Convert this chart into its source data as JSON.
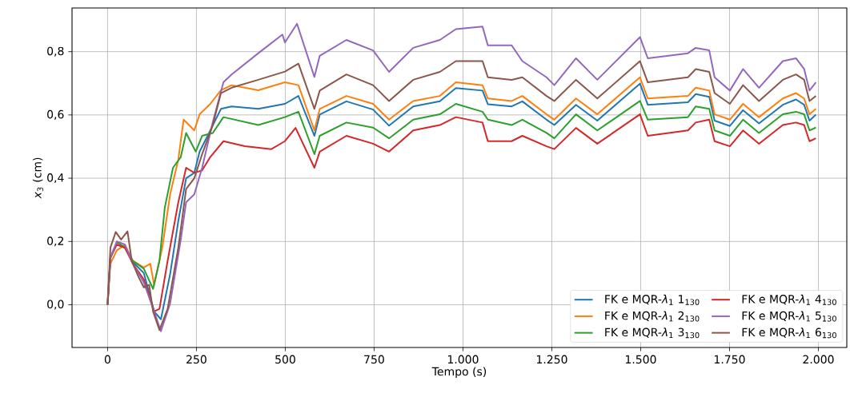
{
  "chart_data": {
    "type": "line",
    "xlabel": "Tempo (s)",
    "ylabel": "*x*$_{3}$ (cm)",
    "xlim": [
      -100,
      2080
    ],
    "ylim": [
      -0.135,
      0.938
    ],
    "xticks": [
      0,
      250,
      500,
      750,
      {
        "value": 1000,
        "label": "1.000"
      },
      {
        "value": 1250,
        "label": "1.250"
      },
      {
        "value": 1500,
        "label": "1.500"
      },
      {
        "value": 1750,
        "label": "1.750"
      },
      {
        "value": 2000,
        "label": "2.000"
      }
    ],
    "yticks": [
      {
        "value": 0,
        "label": "0,0"
      },
      {
        "value": 0.2,
        "label": "0,2"
      },
      {
        "value": 0.4,
        "label": "0,4"
      },
      {
        "value": 0.6,
        "label": "0,6"
      },
      {
        "value": 0.8,
        "label": "0,8"
      }
    ],
    "grid": true,
    "legend": "bottom right",
    "series": [
      {
        "name": "FK e MQR-*λ*$_{1}$ 1$_{130}$",
        "color": "#1f77b4",
        "x": [
          49,
          71,
          102,
          131,
          150,
          176,
          199,
          221,
          244,
          259,
          289,
          319,
          349,
          424,
          499,
          537,
          582,
          597,
          672,
          747,
          792,
          860,
          935,
          980,
          1055,
          1070,
          1137,
          1167,
          1235,
          1257,
          1318,
          1378,
          1498,
          1520,
          1633,
          1655,
          1693,
          1708,
          1751,
          1788,
          1833,
          1900,
          1937,
          1960,
          1975,
          1993
        ],
        "values": [
          0.18,
          0.135,
          0.1,
          -0.021,
          -0.046,
          0.097,
          0.265,
          0.4,
          0.417,
          0.484,
          0.551,
          0.619,
          0.627,
          0.619,
          0.635,
          0.66,
          0.534,
          0.601,
          0.643,
          0.617,
          0.566,
          0.627,
          0.643,
          0.685,
          0.677,
          0.634,
          0.627,
          0.643,
          0.585,
          0.568,
          0.632,
          0.582,
          0.699,
          0.632,
          0.64,
          0.666,
          0.657,
          0.582,
          0.565,
          0.615,
          0.573,
          0.632,
          0.649,
          0.632,
          0.582,
          0.601
        ]
      },
      {
        "name": "FK e MQR-*λ*$_{1}$ 2$_{130}$",
        "color": "#ff7f0e",
        "x": [
          0,
          8,
          26,
          49,
          71,
          102,
          120,
          131,
          154,
          176,
          199,
          214,
          244,
          259,
          289,
          319,
          349,
          424,
          499,
          537,
          582,
          597,
          672,
          747,
          792,
          860,
          935,
          980,
          1055,
          1070,
          1137,
          1167,
          1235,
          1257,
          1318,
          1378,
          1498,
          1520,
          1633,
          1655,
          1693,
          1708,
          1751,
          1788,
          1833,
          1900,
          1937,
          1960,
          1975,
          1993
        ],
        "values": [
          0,
          0.13,
          0.172,
          0.189,
          0.139,
          0.118,
          0.13,
          0.063,
          0.181,
          0.349,
          0.459,
          0.585,
          0.551,
          0.602,
          0.635,
          0.678,
          0.694,
          0.678,
          0.703,
          0.694,
          0.551,
          0.619,
          0.66,
          0.635,
          0.585,
          0.644,
          0.66,
          0.703,
          0.694,
          0.652,
          0.644,
          0.66,
          0.602,
          0.585,
          0.652,
          0.602,
          0.719,
          0.652,
          0.66,
          0.686,
          0.677,
          0.602,
          0.585,
          0.635,
          0.593,
          0.652,
          0.669,
          0.652,
          0.602,
          0.619
        ]
      },
      {
        "name": "FK e MQR-*λ*$_{1}$ 3$_{130}$",
        "color": "#2ca02c",
        "x": [
          0,
          8,
          26,
          49,
          71,
          102,
          128,
          146,
          161,
          184,
          206,
          221,
          248,
          266,
          296,
          326,
          424,
          499,
          537,
          582,
          597,
          672,
          747,
          792,
          860,
          935,
          980,
          1055,
          1070,
          1137,
          1167,
          1235,
          1257,
          1318,
          1378,
          1498,
          1520,
          1633,
          1655,
          1693,
          1708,
          1751,
          1788,
          1833,
          1900,
          1937,
          1960,
          1975,
          1993
        ],
        "values": [
          0,
          0.147,
          0.198,
          0.181,
          0.139,
          0.114,
          0.05,
          0.139,
          0.307,
          0.433,
          0.467,
          0.543,
          0.484,
          0.534,
          0.543,
          0.593,
          0.568,
          0.593,
          0.61,
          0.476,
          0.534,
          0.576,
          0.56,
          0.526,
          0.585,
          0.602,
          0.635,
          0.61,
          0.585,
          0.568,
          0.585,
          0.543,
          0.526,
          0.602,
          0.551,
          0.644,
          0.585,
          0.593,
          0.627,
          0.619,
          0.551,
          0.534,
          0.585,
          0.543,
          0.602,
          0.61,
          0.602,
          0.551,
          0.56
        ]
      },
      {
        "name": "FK e MQR-*λ*$_{1}$ 4$_{130}$",
        "color": "#d62728",
        "x": [
          0,
          8,
          26,
          49,
          71,
          102,
          131,
          146,
          169,
          199,
          221,
          244,
          266,
          289,
          326,
          386,
          461,
          499,
          529,
          582,
          597,
          672,
          747,
          792,
          860,
          935,
          980,
          1055,
          1070,
          1137,
          1167,
          1235,
          1257,
          1318,
          1378,
          1498,
          1520,
          1633,
          1655,
          1693,
          1708,
          1751,
          1788,
          1833,
          1900,
          1937,
          1960,
          1975,
          1993
        ],
        "values": [
          0,
          0.15,
          0.19,
          0.18,
          0.13,
          0.08,
          -0.021,
          -0.013,
          0.139,
          0.324,
          0.433,
          0.417,
          0.425,
          0.467,
          0.517,
          0.501,
          0.492,
          0.517,
          0.559,
          0.433,
          0.484,
          0.534,
          0.509,
          0.484,
          0.551,
          0.568,
          0.593,
          0.576,
          0.517,
          0.517,
          0.534,
          0.501,
          0.492,
          0.559,
          0.509,
          0.602,
          0.534,
          0.551,
          0.576,
          0.585,
          0.517,
          0.501,
          0.551,
          0.509,
          0.568,
          0.576,
          0.568,
          0.517,
          0.526
        ]
      },
      {
        "name": "FK e MQR-*λ*$_{1}$ 5$_{130}$",
        "color": "#9467bd",
        "x": [
          0,
          8,
          26,
          49,
          71,
          102,
          131,
          150,
          176,
          206,
          221,
          244,
          266,
          296,
          326,
          349,
          424,
          492,
          499,
          533,
          582,
          597,
          672,
          747,
          792,
          860,
          935,
          980,
          1055,
          1070,
          1137,
          1167,
          1235,
          1257,
          1318,
          1378,
          1498,
          1520,
          1633,
          1655,
          1693,
          1708,
          1751,
          1788,
          1833,
          1900,
          1937,
          1960,
          1975,
          1993
        ],
        "values": [
          0,
          0.15,
          0.2,
          0.19,
          0.13,
          0.07,
          -0.021,
          -0.084,
          0.004,
          0.206,
          0.324,
          0.349,
          0.433,
          0.577,
          0.703,
          0.728,
          0.795,
          0.854,
          0.829,
          0.888,
          0.72,
          0.787,
          0.837,
          0.804,
          0.736,
          0.812,
          0.837,
          0.871,
          0.879,
          0.82,
          0.82,
          0.77,
          0.719,
          0.694,
          0.779,
          0.711,
          0.846,
          0.779,
          0.795,
          0.812,
          0.804,
          0.719,
          0.677,
          0.745,
          0.686,
          0.77,
          0.779,
          0.745,
          0.677,
          0.703
        ]
      },
      {
        "name": "FK e MQR-*λ*$_{1}$ 6$_{130}$",
        "color": "#8c564b",
        "x": [
          0,
          8,
          23,
          38,
          56,
          68,
          87,
          102,
          117,
          128,
          146,
          169,
          199,
          221,
          244,
          266,
          296,
          319,
          349,
          424,
          499,
          537,
          582,
          597,
          672,
          747,
          792,
          860,
          935,
          980,
          1055,
          1070,
          1137,
          1167,
          1235,
          1257,
          1318,
          1378,
          1498,
          1520,
          1633,
          1655,
          1693,
          1708,
          1751,
          1788,
          1833,
          1900,
          1937,
          1960,
          1975,
          1993
        ],
        "values": [
          0,
          0.181,
          0.23,
          0.206,
          0.232,
          0.139,
          0.088,
          0.055,
          0.063,
          -0.021,
          -0.08,
          -0.013,
          0.181,
          0.366,
          0.4,
          0.476,
          0.568,
          0.669,
          0.686,
          0.711,
          0.737,
          0.762,
          0.619,
          0.677,
          0.728,
          0.694,
          0.644,
          0.711,
          0.736,
          0.77,
          0.77,
          0.719,
          0.711,
          0.719,
          0.66,
          0.644,
          0.711,
          0.652,
          0.77,
          0.703,
          0.719,
          0.745,
          0.736,
          0.669,
          0.635,
          0.694,
          0.644,
          0.711,
          0.728,
          0.711,
          0.644,
          0.66
        ]
      }
    ]
  }
}
